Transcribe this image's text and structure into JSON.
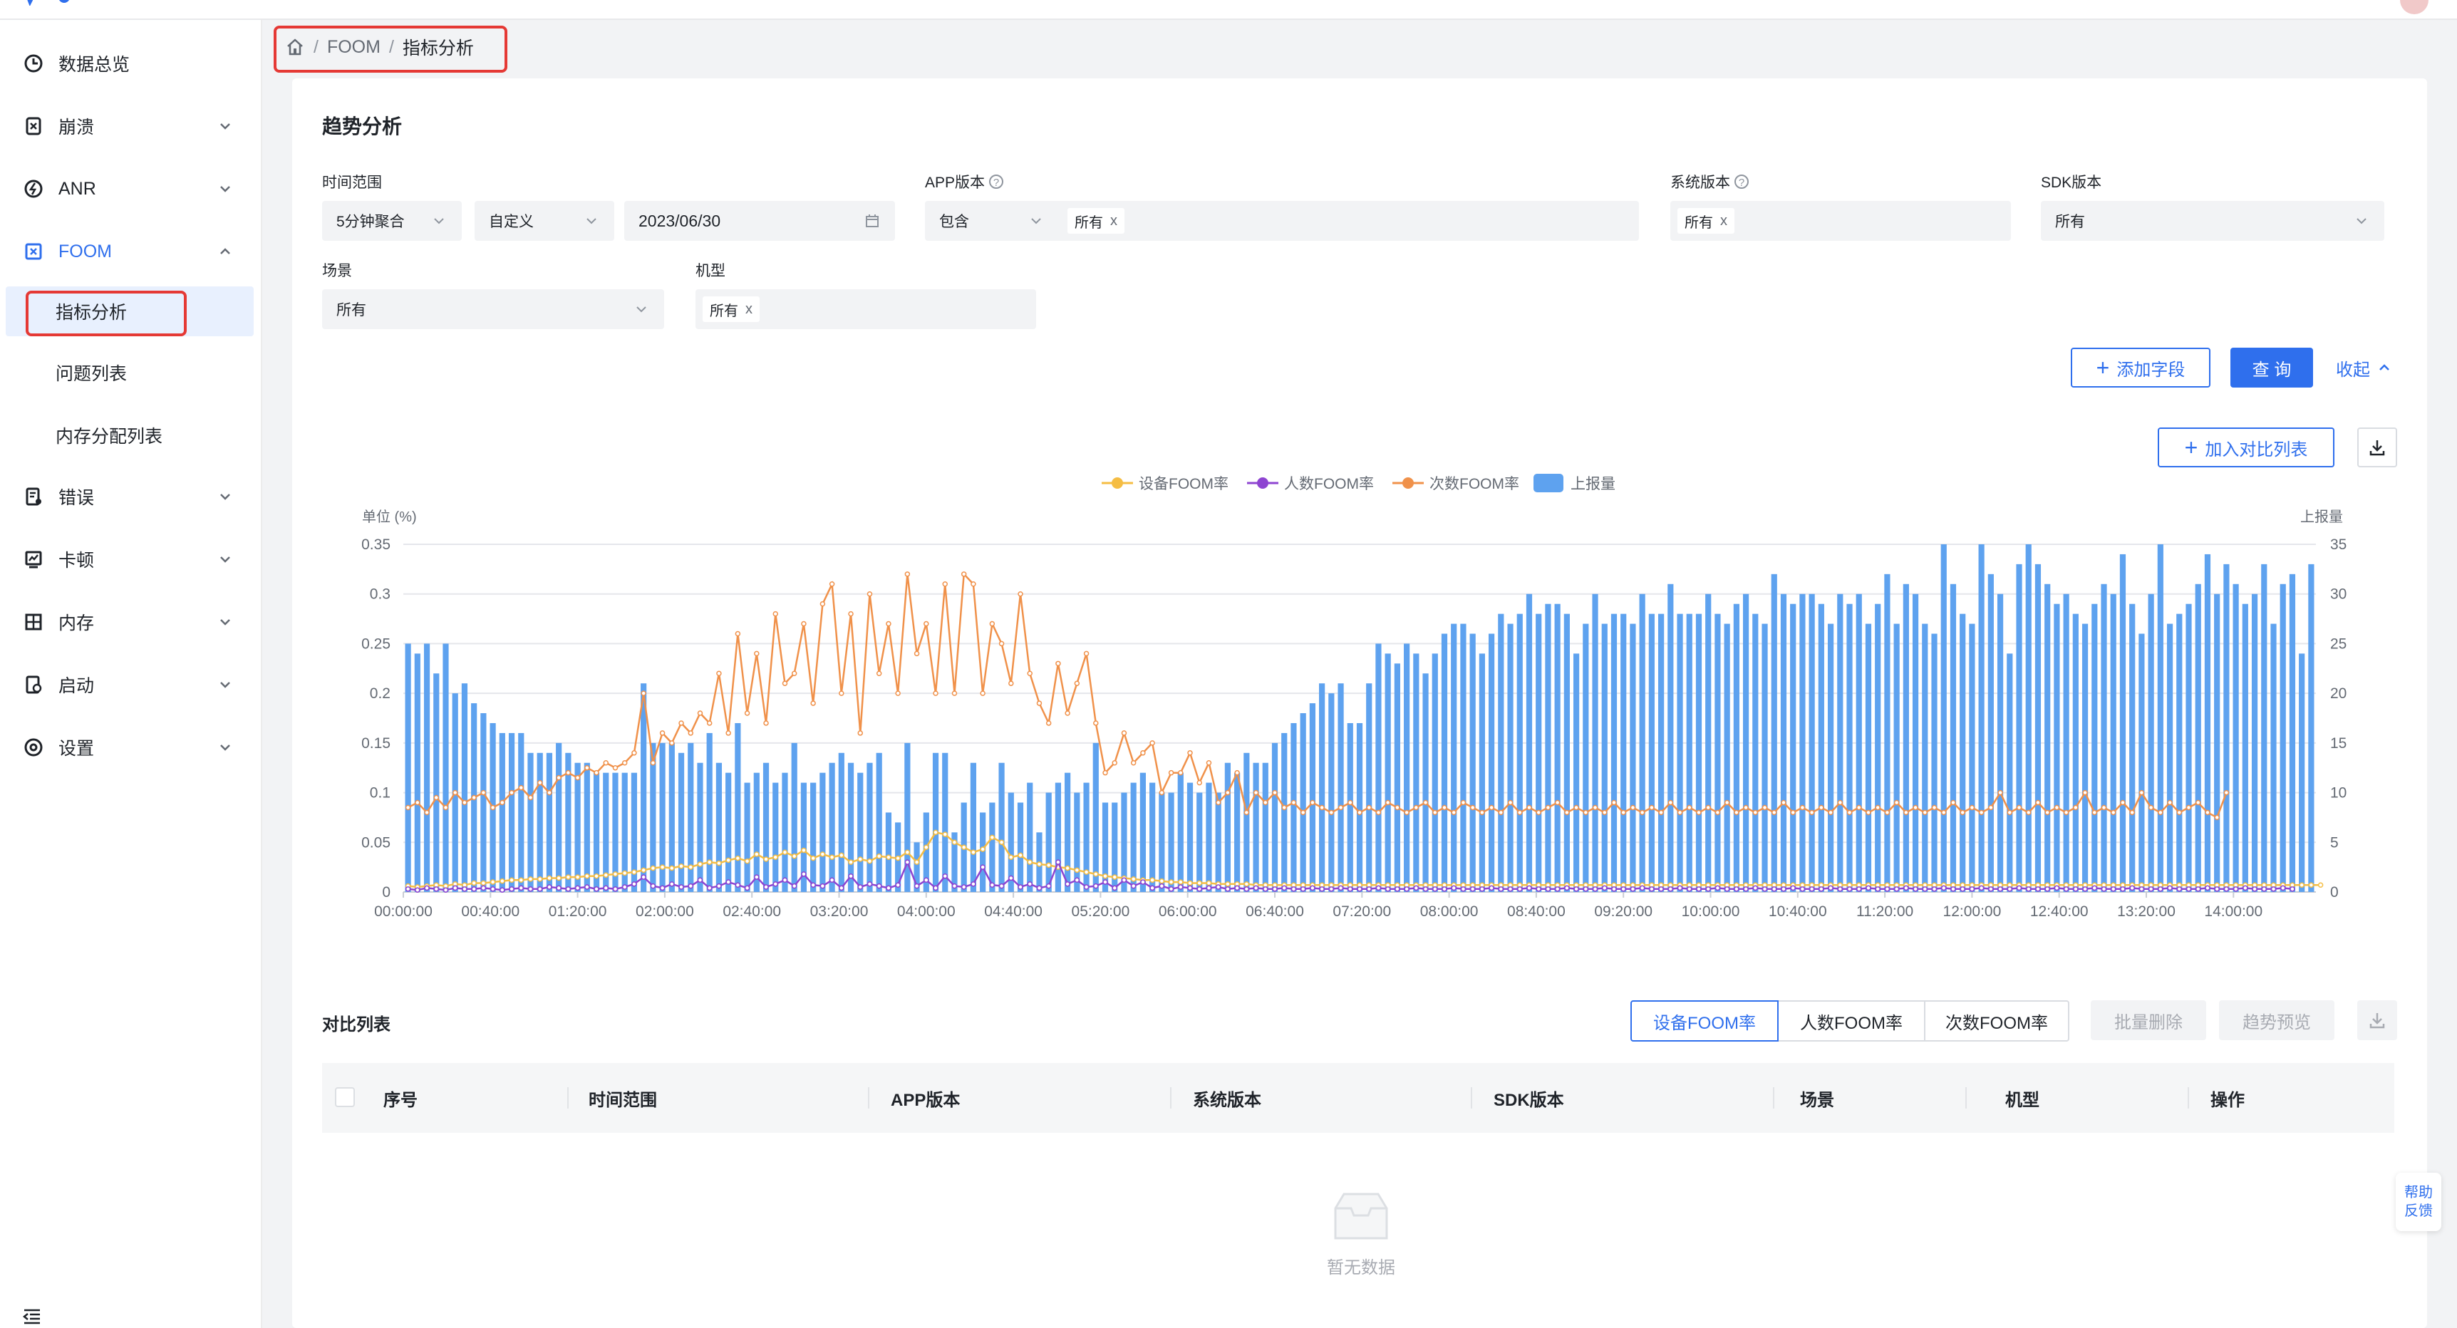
{
  "sidebar": {
    "items": [
      {
        "label": "数据总览",
        "icon": "clock-icon"
      },
      {
        "label": "崩溃",
        "icon": "bug-icon"
      },
      {
        "label": "ANR",
        "icon": "anr-icon"
      },
      {
        "label": "FOOM",
        "icon": "foom-icon"
      },
      {
        "label": "错误",
        "icon": "error-doc-icon"
      },
      {
        "label": "卡顿",
        "icon": "lag-chart-icon"
      },
      {
        "label": "内存",
        "icon": "memory-icon"
      },
      {
        "label": "启动",
        "icon": "launch-icon"
      },
      {
        "label": "设置",
        "icon": "settings-icon"
      }
    ],
    "foom_sub": [
      "指标分析",
      "问题列表",
      "内存分配列表"
    ]
  },
  "breadcrumb": {
    "root": "FOOM",
    "sep": "/",
    "current": "指标分析"
  },
  "trend": {
    "title": "趋势分析"
  },
  "filters": {
    "time_label": "时间范围",
    "time_agg": "5分钟聚合",
    "time_mode": "自定义",
    "date": "2023/06/30",
    "app_label": "APP版本",
    "app_mode": "包含",
    "app_tag": "所有",
    "sys_label": "系统版本",
    "sys_tag": "所有",
    "sdk_label": "SDK版本",
    "sdk_value": "所有",
    "scene_label": "场景",
    "scene_value": "所有",
    "model_label": "机型",
    "model_tag": "所有",
    "tag_close": "x"
  },
  "buttons": {
    "add_field": "添加字段",
    "query": "查 询",
    "collapse": "收起",
    "add_compare": "加入对比列表"
  },
  "compare": {
    "title": "对比列表",
    "metric_tabs": [
      "设备FOOM率",
      "人数FOOM率",
      "次数FOOM率"
    ],
    "batch_delete": "批量删除",
    "trend_preview": "趋势预览",
    "columns": [
      "序号",
      "时间范围",
      "APP版本",
      "系统版本",
      "SDK版本",
      "场景",
      "机型",
      "操作"
    ],
    "empty": "暂无数据"
  },
  "feedback": {
    "line1": "帮助",
    "line2": "反馈"
  },
  "colors": {
    "primary": "#2f6fed",
    "bar": "#5ea2ef",
    "device": "#f5bd43",
    "people": "#8e44d1",
    "times": "#f0914a"
  },
  "chart_data": {
    "type": "bar",
    "left_unit": "单位 (%)",
    "right_unit": "上报量",
    "ylim": [
      0,
      0.35
    ],
    "y2lim": [
      0,
      35
    ],
    "y_ticks": [
      "0.35",
      "0.3",
      "0.25",
      "0.2",
      "0.15",
      "0.1",
      "0.05",
      "0"
    ],
    "y2_ticks": [
      "35",
      "30",
      "25",
      "20",
      "15",
      "10",
      "5",
      "0"
    ],
    "x_ticks": [
      "00:00:00",
      "00:40:00",
      "01:20:00",
      "02:00:00",
      "02:40:00",
      "03:20:00",
      "04:00:00",
      "04:40:00",
      "05:20:00",
      "06:00:00",
      "06:40:00",
      "07:20:00",
      "08:00:00",
      "08:40:00",
      "09:20:00",
      "10:00:00",
      "10:40:00",
      "11:20:00",
      "12:00:00",
      "12:40:00",
      "13:20:00",
      "14:00:00"
    ],
    "legend": [
      "设备FOOM率",
      "人数FOOM率",
      "次数FOOM率",
      "上报量"
    ],
    "grid": true,
    "legend_position": "top-center",
    "series": [
      {
        "name": "上报量",
        "type": "bar",
        "axis": "right",
        "values": [
          25,
          24,
          25,
          22,
          25,
          20,
          21,
          19,
          18,
          17,
          16,
          16,
          16,
          14,
          14,
          14,
          15,
          14,
          13,
          13,
          12,
          12,
          12,
          12,
          12,
          21,
          15,
          15,
          15,
          14,
          15,
          13,
          16,
          13,
          12,
          17,
          11,
          12,
          13,
          11,
          12,
          15,
          11,
          11,
          12,
          13,
          14,
          13,
          12,
          13,
          14,
          8,
          7,
          15,
          5,
          8,
          14,
          14,
          6,
          9,
          13,
          8,
          9,
          13,
          10,
          9,
          11,
          6,
          10,
          11,
          12,
          10,
          11,
          15,
          9,
          9,
          10,
          11,
          12,
          11,
          10,
          10,
          12,
          11,
          10,
          11,
          10,
          13,
          12,
          14,
          13,
          13,
          15,
          16,
          17,
          18,
          19,
          21,
          20,
          21,
          17,
          17,
          21,
          25,
          24,
          23,
          25,
          24,
          22,
          24,
          26,
          27,
          27,
          26,
          24,
          26,
          28,
          27,
          28,
          30,
          28,
          29,
          29,
          28,
          24,
          27,
          30,
          27,
          28,
          28,
          27,
          30,
          28,
          28,
          31,
          28,
          28,
          28,
          30,
          28,
          27,
          29,
          30,
          28,
          27,
          32,
          30,
          29,
          30,
          30,
          29,
          27,
          30,
          29,
          30,
          27,
          29,
          32,
          27,
          31,
          30,
          27,
          26,
          35,
          31,
          28,
          27,
          35,
          32,
          30,
          24,
          33,
          35,
          33,
          31,
          29,
          30,
          28,
          27,
          29,
          31,
          30,
          34,
          29,
          26,
          30,
          35,
          27,
          28,
          29,
          31,
          34,
          30,
          33,
          31,
          29,
          30,
          33,
          27,
          31,
          32,
          24,
          33
        ]
      },
      {
        "name": "设备FOOM率",
        "type": "line",
        "axis": "left",
        "values": [
          0.006,
          0.005,
          0.006,
          0.007,
          0.006,
          0.008,
          0.007,
          0.009,
          0.009,
          0.01,
          0.011,
          0.012,
          0.012,
          0.013,
          0.013,
          0.014,
          0.014,
          0.015,
          0.015,
          0.016,
          0.016,
          0.017,
          0.018,
          0.019,
          0.02,
          0.022,
          0.024,
          0.025,
          0.024,
          0.026,
          0.025,
          0.028,
          0.03,
          0.029,
          0.032,
          0.034,
          0.031,
          0.038,
          0.033,
          0.035,
          0.04,
          0.036,
          0.042,
          0.034,
          0.038,
          0.035,
          0.037,
          0.03,
          0.033,
          0.031,
          0.036,
          0.035,
          0.034,
          0.04,
          0.03,
          0.045,
          0.06,
          0.058,
          0.05,
          0.045,
          0.04,
          0.043,
          0.055,
          0.05,
          0.035,
          0.037,
          0.03,
          0.028,
          0.027,
          0.025,
          0.024,
          0.022,
          0.02,
          0.018,
          0.016,
          0.015,
          0.014,
          0.013,
          0.012,
          0.012,
          0.011,
          0.01,
          0.01,
          0.009,
          0.009,
          0.009,
          0.008,
          0.008,
          0.008,
          0.008,
          0.007,
          0.007,
          0.007,
          0.007,
          0.007,
          0.007,
          0.007,
          0.007,
          0.007,
          0.007,
          0.007,
          0.007,
          0.007,
          0.007,
          0.007,
          0.007,
          0.007,
          0.007,
          0.007,
          0.007,
          0.007,
          0.007,
          0.007,
          0.007,
          0.007,
          0.007,
          0.007,
          0.007,
          0.007,
          0.007,
          0.007,
          0.007,
          0.007,
          0.007,
          0.007,
          0.007,
          0.007,
          0.007,
          0.007,
          0.007,
          0.007,
          0.007,
          0.007,
          0.007,
          0.007,
          0.007,
          0.007,
          0.007,
          0.007,
          0.007,
          0.007,
          0.007,
          0.007,
          0.007,
          0.007,
          0.007,
          0.007,
          0.007,
          0.007,
          0.007,
          0.007,
          0.007,
          0.007,
          0.007,
          0.007,
          0.007,
          0.007,
          0.007,
          0.007,
          0.007,
          0.007,
          0.007,
          0.007,
          0.007,
          0.007,
          0.007,
          0.007,
          0.007,
          0.007,
          0.007,
          0.007,
          0.007,
          0.007,
          0.007,
          0.007,
          0.007,
          0.007,
          0.007,
          0.007,
          0.007,
          0.007,
          0.007,
          0.007,
          0.007,
          0.007,
          0.007,
          0.007,
          0.007,
          0.007,
          0.007,
          0.007,
          0.007,
          0.007,
          0.007,
          0.007,
          0.007,
          0.007,
          0.007,
          0.007,
          0.007,
          0.007,
          0.007,
          0.007,
          0.007
        ]
      },
      {
        "name": "人数FOOM率",
        "type": "line",
        "axis": "left",
        "values": [
          0.003,
          0.002,
          0.004,
          0.003,
          0.002,
          0.004,
          0.003,
          0.003,
          0.004,
          0.003,
          0.002,
          0.003,
          0.004,
          0.003,
          0.003,
          0.005,
          0.004,
          0.003,
          0.004,
          0.005,
          0.003,
          0.004,
          0.003,
          0.005,
          0.008,
          0.015,
          0.006,
          0.004,
          0.008,
          0.005,
          0.006,
          0.012,
          0.004,
          0.006,
          0.01,
          0.007,
          0.004,
          0.015,
          0.005,
          0.008,
          0.012,
          0.006,
          0.018,
          0.007,
          0.006,
          0.012,
          0.004,
          0.016,
          0.005,
          0.008,
          0.006,
          0.004,
          0.007,
          0.03,
          0.006,
          0.012,
          0.004,
          0.016,
          0.006,
          0.005,
          0.008,
          0.025,
          0.007,
          0.006,
          0.014,
          0.005,
          0.008,
          0.004,
          0.006,
          0.03,
          0.008,
          0.012,
          0.005,
          0.006,
          0.01,
          0.004,
          0.012,
          0.006,
          0.01,
          0.004,
          0.006,
          0.003,
          0.005,
          0.004,
          0.003,
          0.004,
          0.005,
          0.003,
          0.004,
          0.003,
          0.004,
          0.003,
          0.003,
          0.004,
          0.003,
          0.003,
          0.004,
          0.003,
          0.003,
          0.004,
          0.003,
          0.003,
          0.003,
          0.004,
          0.003,
          0.003,
          0.003,
          0.004,
          0.003,
          0.003,
          0.003,
          0.004,
          0.003,
          0.003,
          0.003,
          0.004,
          0.003,
          0.003,
          0.003,
          0.004,
          0.003,
          0.003,
          0.003,
          0.004,
          0.003,
          0.003,
          0.003,
          0.004,
          0.003,
          0.003,
          0.003,
          0.004,
          0.003,
          0.003,
          0.003,
          0.004,
          0.003,
          0.003,
          0.003,
          0.004,
          0.003,
          0.003,
          0.003,
          0.004,
          0.003,
          0.003,
          0.003,
          0.004,
          0.003,
          0.003,
          0.003,
          0.004,
          0.003,
          0.003,
          0.003,
          0.004,
          0.003,
          0.003,
          0.003,
          0.004,
          0.003,
          0.003,
          0.003,
          0.004,
          0.003,
          0.003,
          0.003,
          0.004,
          0.003,
          0.003,
          0.003,
          0.004,
          0.003,
          0.003,
          0.003,
          0.004,
          0.003,
          0.003,
          0.003,
          0.004,
          0.003,
          0.003,
          0.003,
          0.004,
          0.003,
          0.003,
          0.003,
          0.004,
          0.003,
          0.003,
          0.003,
          0.004,
          0.003,
          0.003,
          0.003,
          0.004,
          0.003,
          0.003,
          0.003,
          0.004,
          0.003
        ]
      },
      {
        "name": "次数FOOM率",
        "type": "line",
        "axis": "left",
        "values": [
          0.085,
          0.09,
          0.08,
          0.095,
          0.085,
          0.1,
          0.09,
          0.095,
          0.1,
          0.085,
          0.09,
          0.1,
          0.105,
          0.095,
          0.11,
          0.1,
          0.115,
          0.12,
          0.115,
          0.125,
          0.12,
          0.13,
          0.125,
          0.13,
          0.14,
          0.2,
          0.13,
          0.16,
          0.15,
          0.17,
          0.16,
          0.18,
          0.17,
          0.22,
          0.16,
          0.26,
          0.18,
          0.24,
          0.17,
          0.28,
          0.21,
          0.22,
          0.27,
          0.19,
          0.29,
          0.31,
          0.2,
          0.28,
          0.16,
          0.3,
          0.22,
          0.27,
          0.2,
          0.32,
          0.24,
          0.27,
          0.2,
          0.31,
          0.2,
          0.32,
          0.31,
          0.2,
          0.27,
          0.25,
          0.21,
          0.3,
          0.22,
          0.19,
          0.17,
          0.23,
          0.18,
          0.21,
          0.24,
          0.17,
          0.12,
          0.13,
          0.16,
          0.13,
          0.14,
          0.15,
          0.1,
          0.12,
          0.12,
          0.14,
          0.11,
          0.13,
          0.09,
          0.1,
          0.12,
          0.08,
          0.1,
          0.09,
          0.1,
          0.085,
          0.09,
          0.08,
          0.09,
          0.085,
          0.08,
          0.085,
          0.09,
          0.08,
          0.085,
          0.08,
          0.09,
          0.085,
          0.08,
          0.085,
          0.09,
          0.08,
          0.085,
          0.08,
          0.09,
          0.085,
          0.08,
          0.085,
          0.08,
          0.09,
          0.08,
          0.085,
          0.08,
          0.085,
          0.09,
          0.08,
          0.085,
          0.08,
          0.085,
          0.08,
          0.09,
          0.08,
          0.085,
          0.08,
          0.085,
          0.08,
          0.09,
          0.08,
          0.085,
          0.08,
          0.085,
          0.08,
          0.09,
          0.08,
          0.085,
          0.08,
          0.085,
          0.08,
          0.09,
          0.08,
          0.085,
          0.08,
          0.085,
          0.08,
          0.09,
          0.08,
          0.085,
          0.08,
          0.085,
          0.08,
          0.09,
          0.08,
          0.085,
          0.08,
          0.085,
          0.08,
          0.09,
          0.08,
          0.085,
          0.08,
          0.085,
          0.1,
          0.08,
          0.085,
          0.08,
          0.09,
          0.08,
          0.085,
          0.08,
          0.085,
          0.1,
          0.08,
          0.085,
          0.08,
          0.09,
          0.08,
          0.1,
          0.085,
          0.08,
          0.09,
          0.08,
          0.085,
          0.09,
          0.08,
          0.075,
          0.1
        ]
      }
    ]
  }
}
